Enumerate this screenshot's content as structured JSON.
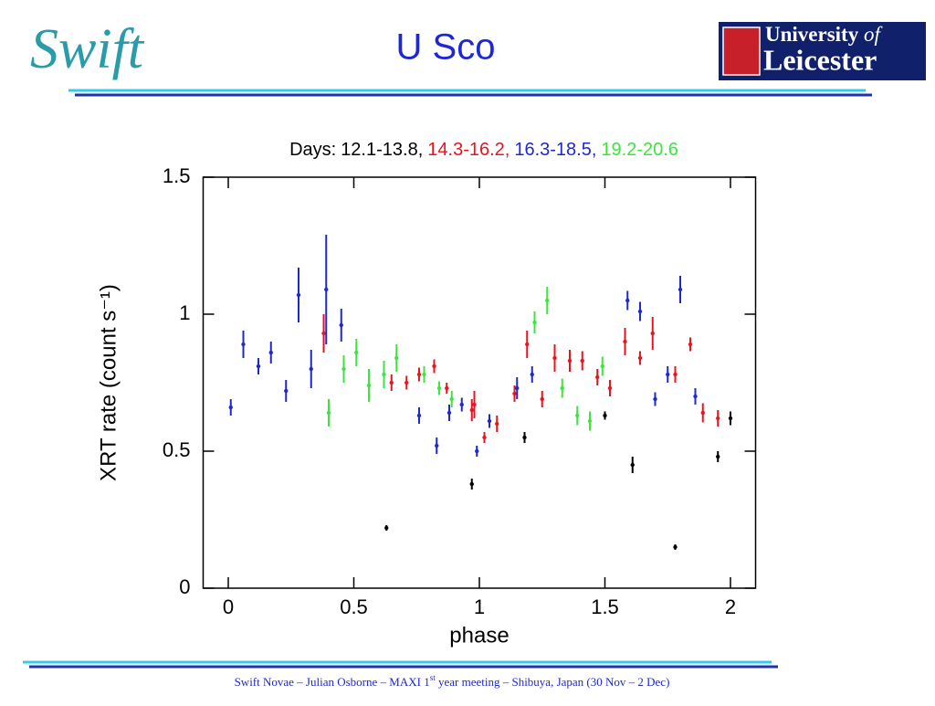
{
  "header": {
    "logo_left": "Swift",
    "title": "U Sco",
    "logo_right_line1": "University",
    "logo_right_of": "of",
    "logo_right_line2": "Leicester"
  },
  "chart_data": {
    "type": "scatter",
    "title": "Days:",
    "separator": ",",
    "x_label": "phase",
    "y_label": "XRT rate (count s⁻¹)",
    "xlim": [
      -0.1,
      2.1
    ],
    "ylim": [
      0,
      1.5
    ],
    "xticks": [
      0,
      0.5,
      1,
      1.5,
      2
    ],
    "yticks": [
      0,
      0.5,
      1,
      1.5
    ],
    "series": [
      {
        "name": "12.1-13.8",
        "color": "#000000",
        "x": [
          0.63,
          0.97,
          1.18,
          1.5,
          1.61,
          1.78,
          1.95,
          2.0
        ],
        "values": [
          0.22,
          0.38,
          0.55,
          0.63,
          0.45,
          0.15,
          0.48,
          0.62
        ],
        "errors": [
          0.01,
          0.02,
          0.02,
          0.015,
          0.03,
          0.01,
          0.02,
          0.025
        ]
      },
      {
        "name": "14.3-16.2",
        "color": "#e8141e",
        "x": [
          0.38,
          0.65,
          0.71,
          0.76,
          0.82,
          0.87,
          0.97,
          0.98,
          1.02,
          1.07,
          1.14,
          1.19,
          1.25,
          1.3,
          1.36,
          1.41,
          1.47,
          1.52,
          1.58,
          1.64,
          1.69,
          1.78,
          1.84,
          1.89,
          1.95
        ],
        "values": [
          0.93,
          0.75,
          0.75,
          0.78,
          0.81,
          0.73,
          0.65,
          0.67,
          0.55,
          0.6,
          0.71,
          0.89,
          0.69,
          0.84,
          0.83,
          0.83,
          0.77,
          0.73,
          0.9,
          0.84,
          0.93,
          0.78,
          0.89,
          0.64,
          0.62
        ],
        "errors": [
          0.07,
          0.03,
          0.025,
          0.025,
          0.025,
          0.02,
          0.04,
          0.05,
          0.02,
          0.03,
          0.03,
          0.05,
          0.03,
          0.05,
          0.04,
          0.035,
          0.03,
          0.03,
          0.05,
          0.025,
          0.06,
          0.03,
          0.025,
          0.035,
          0.03
        ]
      },
      {
        "name": "16.3-18.5",
        "color": "#1e28d2",
        "x": [
          0.01,
          0.06,
          0.12,
          0.17,
          0.23,
          0.28,
          0.33,
          0.39,
          0.45,
          0.76,
          0.83,
          0.88,
          0.93,
          0.99,
          1.04,
          1.15,
          1.21,
          1.59,
          1.64,
          1.7,
          1.75,
          1.8,
          1.86
        ],
        "values": [
          0.66,
          0.89,
          0.81,
          0.86,
          0.72,
          1.07,
          0.8,
          1.09,
          0.96,
          0.63,
          0.52,
          0.64,
          0.67,
          0.5,
          0.61,
          0.73,
          0.78,
          1.05,
          1.01,
          0.69,
          0.78,
          1.09,
          0.7
        ],
        "errors": [
          0.03,
          0.05,
          0.03,
          0.04,
          0.04,
          0.1,
          0.07,
          0.2,
          0.06,
          0.03,
          0.03,
          0.03,
          0.025,
          0.02,
          0.025,
          0.04,
          0.03,
          0.035,
          0.035,
          0.025,
          0.03,
          0.05,
          0.03
        ]
      },
      {
        "name": "19.2-20.6",
        "color": "#3ce63c",
        "x": [
          0.4,
          0.46,
          0.51,
          0.56,
          0.62,
          0.67,
          0.78,
          0.84,
          0.89,
          1.22,
          1.27,
          1.33,
          1.39,
          1.44,
          1.49
        ],
        "values": [
          0.64,
          0.8,
          0.86,
          0.74,
          0.78,
          0.84,
          0.78,
          0.73,
          0.69,
          0.97,
          1.05,
          0.73,
          0.63,
          0.61,
          0.81
        ],
        "errors": [
          0.05,
          0.05,
          0.05,
          0.06,
          0.05,
          0.05,
          0.03,
          0.025,
          0.03,
          0.04,
          0.05,
          0.035,
          0.035,
          0.035,
          0.035
        ]
      }
    ]
  },
  "footer": {
    "before": "Swift Novae – Julian Osborne – MAXI 1",
    "sup": "st",
    "after": " year meeting – Shibuya, Japan (30 Nov – 2 Dec)"
  }
}
